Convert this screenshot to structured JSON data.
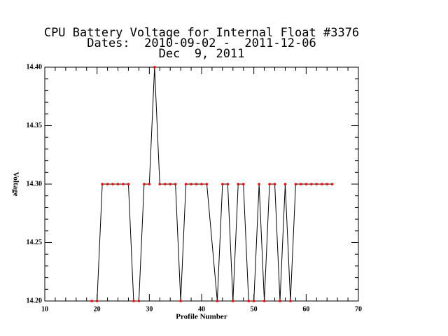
{
  "chart_data": {
    "type": "line",
    "title": [
      "CPU Battery Voltage for Internal Float #3376",
      "Dates:  2010-09-02 -  2011-12-06",
      "Dec  9, 2011"
    ],
    "x_label": "Profile Number",
    "y_label": "Voltage",
    "x": [
      19,
      20,
      21,
      22,
      23,
      24,
      25,
      26,
      27,
      28,
      29,
      30,
      31,
      32,
      33,
      34,
      35,
      36,
      37,
      38,
      39,
      40,
      41,
      43,
      44,
      45,
      46,
      47,
      48,
      49,
      50,
      51,
      52,
      53,
      54,
      55,
      56,
      57,
      58,
      59,
      60,
      61,
      62,
      63,
      64,
      65
    ],
    "series": [
      {
        "name": "Voltage",
        "color": "#000000",
        "marker_color": "#ff0000",
        "values": [
          14.2,
          14.2,
          14.3,
          14.3,
          14.3,
          14.3,
          14.3,
          14.3,
          14.2,
          14.2,
          14.3,
          14.3,
          14.4,
          14.3,
          14.3,
          14.3,
          14.3,
          14.2,
          14.3,
          14.3,
          14.3,
          14.3,
          14.3,
          14.2,
          14.3,
          14.3,
          14.2,
          14.3,
          14.3,
          14.2,
          14.2,
          14.3,
          14.2,
          14.3,
          14.3,
          14.2,
          14.3,
          14.2,
          14.3,
          14.3,
          14.3,
          14.3,
          14.3,
          14.3,
          14.3,
          14.3
        ]
      }
    ],
    "xlim": [
      10,
      70
    ],
    "xticks": [
      10,
      20,
      30,
      40,
      50,
      60,
      70
    ],
    "ylim": [
      14.2,
      14.4
    ],
    "yticks": [
      {
        "value": 14.2,
        "label": "14.20"
      },
      14.25,
      {
        "value": 14.3,
        "label": "14.30"
      },
      14.35,
      {
        "value": 14.4,
        "label": "14.40"
      }
    ],
    "minor_ticks": 5,
    "grid": false
  }
}
